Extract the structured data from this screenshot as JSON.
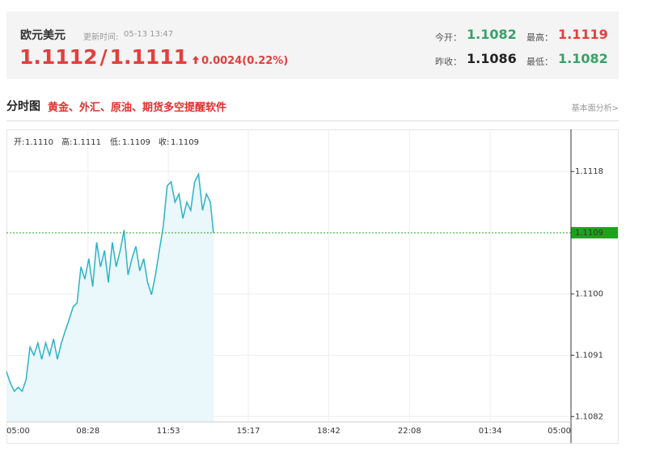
{
  "header": {
    "title": "欧元美元",
    "update_label": "更新时间:",
    "update_time": "05-13 13:47",
    "bid": "1.1112",
    "separator": "/",
    "ask": "1.1111",
    "change": "0.0024(0.22%)",
    "stats": [
      {
        "label": "今开：",
        "value": "1.1082"
      },
      {
        "label": "最高：",
        "value": "1.1119"
      },
      {
        "label": "昨收：",
        "value": "1.1086"
      },
      {
        "label": "最低：",
        "value": "1.1082"
      }
    ]
  },
  "section": {
    "title": "分时图",
    "promo": "黄金、外汇、原油、期货多空提醒软件",
    "link": "基本面分析>"
  },
  "chart_data": {
    "type": "line",
    "ohlc": [
      {
        "label": "开:",
        "value": "1.1110"
      },
      {
        "label": "高:",
        "value": "1.1111"
      },
      {
        "label": "低:",
        "value": "1.1109"
      },
      {
        "label": "收:",
        "value": "1.1109"
      }
    ],
    "xlim": [
      0,
      1440
    ],
    "xticks": [
      {
        "value": 0,
        "label": "05:00"
      },
      {
        "value": 208,
        "label": "08:28"
      },
      {
        "value": 413,
        "label": "11:53"
      },
      {
        "value": 617,
        "label": "15:17"
      },
      {
        "value": 822,
        "label": "18:42"
      },
      {
        "value": 1028,
        "label": "22:08"
      },
      {
        "value": 1234,
        "label": "01:34"
      },
      {
        "value": 1440,
        "label": "05:00"
      }
    ],
    "ylim": [
      1.10812,
      1.11242
    ],
    "yticks": [
      1.1082,
      1.1091,
      {
        "value": 1.11,
        "label": "1.1100"
      },
      1.1118
    ],
    "current": 1.1109,
    "grid": true,
    "series": [
      {
        "color": "#2ab3c8",
        "x": [
          0,
          10,
          20,
          30,
          40,
          50,
          60,
          70,
          80,
          90,
          100,
          110,
          120,
          130,
          140,
          150,
          160,
          170,
          180,
          190,
          200,
          210,
          220,
          230,
          240,
          250,
          260,
          270,
          280,
          290,
          300,
          310,
          320,
          330,
          340,
          350,
          360,
          370,
          380,
          390,
          400,
          410,
          420,
          430,
          440,
          450,
          460,
          470,
          480,
          490,
          500,
          510,
          520,
          528
        ],
        "values": [
          1.10886,
          1.10869,
          1.10857,
          1.10863,
          1.10857,
          1.10874,
          1.10922,
          1.1091,
          1.10928,
          1.10904,
          1.10928,
          1.1091,
          1.10934,
          1.10904,
          1.10928,
          1.10946,
          1.10963,
          1.10981,
          1.10987,
          1.1104,
          1.11022,
          1.11052,
          1.11011,
          1.11076,
          1.1104,
          1.11064,
          1.11017,
          1.11076,
          1.1104,
          1.11064,
          1.11094,
          1.11028,
          1.11052,
          1.1107,
          1.11034,
          1.11052,
          1.11017,
          1.10999,
          1.11028,
          1.11064,
          1.111,
          1.11159,
          1.11165,
          1.11135,
          1.11147,
          1.11111,
          1.11135,
          1.11123,
          1.11165,
          1.11176,
          1.11123,
          1.11147,
          1.11135,
          1.1109
        ]
      }
    ]
  }
}
